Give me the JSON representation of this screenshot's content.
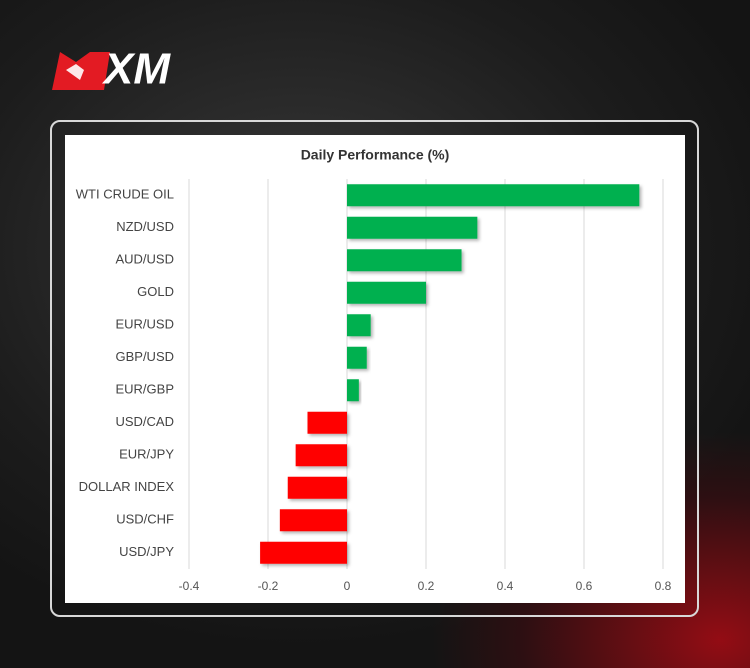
{
  "brand": "XM",
  "chart_data": {
    "type": "hbar",
    "title": "Daily Performance (%)",
    "categories": [
      "WTI CRUDE OIL",
      "NZD/USD",
      "AUD/USD",
      "GOLD",
      "EUR/USD",
      "GBP/USD",
      "EUR/GBP",
      "USD/CAD",
      "EUR/JPY",
      "DOLLAR INDEX",
      "USD/CHF",
      "USD/JPY"
    ],
    "values": [
      0.74,
      0.33,
      0.29,
      0.2,
      0.06,
      0.05,
      0.03,
      -0.1,
      -0.13,
      -0.15,
      -0.17,
      -0.22
    ],
    "positive_color": "#00b050",
    "negative_color": "#ff0000",
    "xlim": [
      -0.4,
      0.8
    ],
    "xticks": [
      -0.4,
      -0.2,
      0,
      0.2,
      0.4,
      0.6,
      0.8
    ],
    "grid": true
  }
}
